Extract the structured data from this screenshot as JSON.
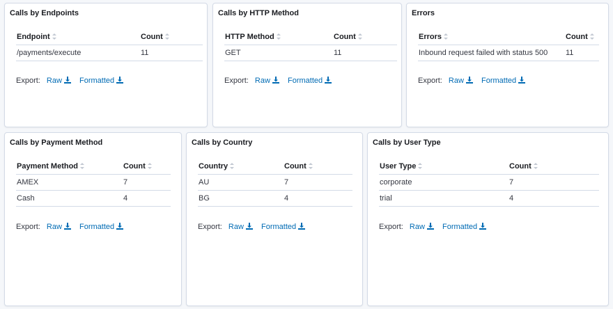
{
  "panels": [
    {
      "title": "Calls by Endpoints",
      "columns": [
        "Endpoint",
        "Count"
      ],
      "rows": [
        [
          "/payments/execute",
          "11"
        ]
      ],
      "export": {
        "label": "Export:",
        "raw": "Raw",
        "formatted": "Formatted"
      }
    },
    {
      "title": "Calls by HTTP Method",
      "columns": [
        "HTTP Method",
        "Count"
      ],
      "rows": [
        [
          "GET",
          "11"
        ]
      ],
      "export": {
        "label": "Export:",
        "raw": "Raw",
        "formatted": "Formatted"
      }
    },
    {
      "title": "Errors",
      "columns": [
        "Errors",
        "Count"
      ],
      "rows": [
        [
          "Inbound request failed with status 500",
          "11"
        ]
      ],
      "export": {
        "label": "Export:",
        "raw": "Raw",
        "formatted": "Formatted"
      }
    },
    {
      "title": "Calls by Payment Method",
      "columns": [
        "Payment Method",
        "Count"
      ],
      "rows": [
        [
          "AMEX",
          "7"
        ],
        [
          "Cash",
          "4"
        ]
      ],
      "export": {
        "label": "Export:",
        "raw": "Raw",
        "formatted": "Formatted"
      }
    },
    {
      "title": "Calls by Country",
      "columns": [
        "Country",
        "Count"
      ],
      "rows": [
        [
          "AU",
          "7"
        ],
        [
          "BG",
          "4"
        ]
      ],
      "export": {
        "label": "Export:",
        "raw": "Raw",
        "formatted": "Formatted"
      }
    },
    {
      "title": "Calls by User Type",
      "columns": [
        "User Type",
        "Count"
      ],
      "rows": [
        [
          "corporate",
          "7"
        ],
        [
          "trial",
          "4"
        ]
      ],
      "export": {
        "label": "Export:",
        "raw": "Raw",
        "formatted": "Formatted"
      }
    }
  ],
  "colors": {
    "link": "#006bb4",
    "border": "#d3dae6",
    "background": "#f5f7fa"
  },
  "icons": {
    "sort": "sort-icon",
    "download": "download-icon"
  }
}
